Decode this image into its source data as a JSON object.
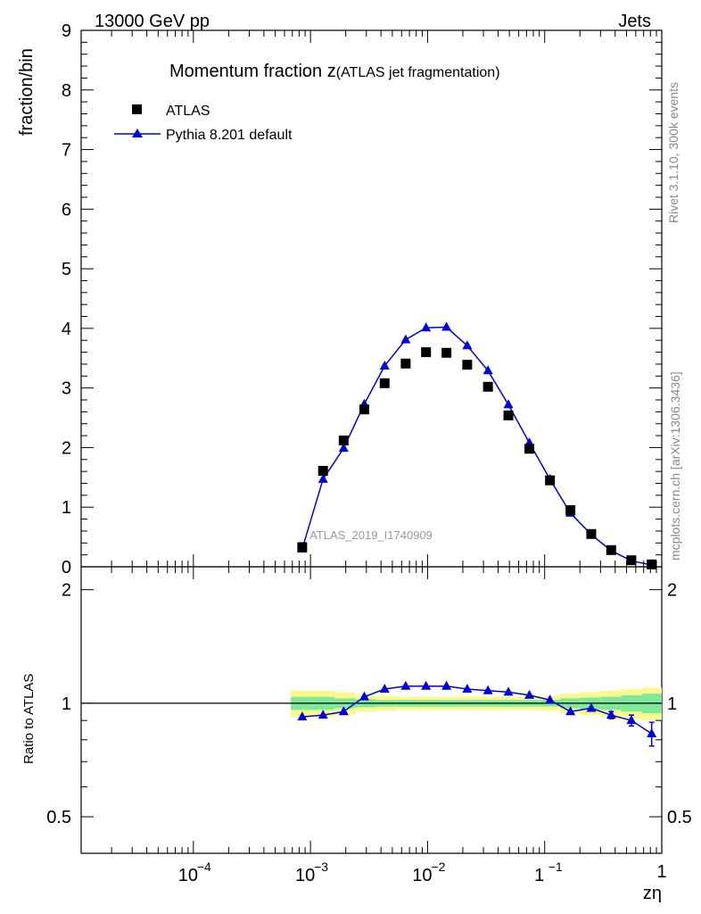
{
  "header": {
    "left": "13000 GeV pp",
    "right": "Jets"
  },
  "side_labels": {
    "rivet": "Rivet 3.1.10,  300k events",
    "mcplots": "mcplots.cern.ch [arXiv:1306.3436]"
  },
  "watermark": "ATLAS_2019_I1740909",
  "colors": {
    "data": "#000000",
    "mc": "#0000dd",
    "band_inner": "#7fe89b",
    "band_outer": "#fafa8c"
  },
  "chart_data": [
    {
      "type": "scatter",
      "title_main": "Momentum fraction z",
      "title_sub": "(ATLAS jet fragmentation)",
      "ylabel": "fraction/bin",
      "xlabel": "zη",
      "xscale": "log",
      "xlim": [
        1.1e-05,
        1.0
      ],
      "ylim": [
        0,
        9
      ],
      "yticks": [
        "0",
        "1",
        "2",
        "3",
        "4",
        "5",
        "6",
        "7",
        "8",
        "9"
      ],
      "xtick_labels": [
        "10",
        "10",
        "10",
        "1"
      ],
      "xtick_exponents": [
        "−4",
        "−3",
        "−2",
        "−1",
        ""
      ],
      "legend": [
        "ATLAS",
        "Pythia 8.201 default"
      ],
      "legend_position": "top-left",
      "series": [
        {
          "name": "ATLAS",
          "marker": "square",
          "x": [
            0.00085,
            0.00128,
            0.00192,
            0.00288,
            0.0043,
            0.0065,
            0.0097,
            0.0145,
            0.0218,
            0.0328,
            0.049,
            0.074,
            0.111,
            0.166,
            0.25,
            0.37,
            0.55,
            0.82
          ],
          "y": [
            0.33,
            1.61,
            2.12,
            2.64,
            3.08,
            3.41,
            3.6,
            3.59,
            3.39,
            3.02,
            2.54,
            1.98,
            1.45,
            0.95,
            0.55,
            0.28,
            0.11,
            0.04
          ]
        },
        {
          "name": "Pythia 8.201 default",
          "marker": "triangle",
          "x": [
            0.00085,
            0.00128,
            0.00192,
            0.00288,
            0.0043,
            0.0065,
            0.0097,
            0.0145,
            0.0218,
            0.0328,
            0.049,
            0.074,
            0.111,
            0.166,
            0.25,
            0.37,
            0.55,
            0.82
          ],
          "y": [
            0.3,
            1.47,
            1.99,
            2.73,
            3.37,
            3.81,
            4.01,
            4.02,
            3.71,
            3.29,
            2.72,
            2.08,
            1.47,
            0.9,
            0.54,
            0.27,
            0.1,
            0.03
          ]
        }
      ]
    },
    {
      "type": "line",
      "ylabel": "Ratio to ATLAS",
      "xlabel": "zη",
      "xscale": "log",
      "yscale": "log",
      "xlim": [
        1.1e-05,
        1.0
      ],
      "ylim": [
        0.4,
        2.3
      ],
      "yticks": [
        "0.5",
        "1",
        "2"
      ],
      "series": [
        {
          "name": "Pythia 8.201 default",
          "x": [
            0.00085,
            0.00128,
            0.00192,
            0.00288,
            0.0043,
            0.0065,
            0.0097,
            0.0145,
            0.0218,
            0.0328,
            0.049,
            0.074,
            0.111,
            0.166,
            0.25,
            0.37,
            0.55,
            0.82
          ],
          "y": [
            0.92,
            0.93,
            0.95,
            1.04,
            1.09,
            1.11,
            1.11,
            1.11,
            1.09,
            1.08,
            1.07,
            1.05,
            1.02,
            0.95,
            0.97,
            0.93,
            0.9,
            0.83
          ],
          "err": [
            0,
            0,
            0,
            0,
            0,
            0,
            0,
            0,
            0,
            0,
            0,
            0,
            0,
            0,
            0,
            0.02,
            0.03,
            0.06
          ]
        }
      ],
      "band_edges": [
        0.00068,
        0.00105,
        0.0016,
        0.0024,
        0.0036,
        0.0054,
        0.0081,
        0.0121,
        0.018,
        0.027,
        0.04,
        0.06,
        0.09,
        0.135,
        0.2,
        0.3,
        0.45,
        0.68,
        1.0
      ],
      "band_inner": [
        0.04,
        0.04,
        0.03,
        0.025,
        0.02,
        0.02,
        0.02,
        0.02,
        0.02,
        0.02,
        0.02,
        0.02,
        0.02,
        0.03,
        0.035,
        0.04,
        0.05,
        0.06
      ],
      "band_outer": [
        0.08,
        0.08,
        0.07,
        0.05,
        0.045,
        0.04,
        0.04,
        0.04,
        0.04,
        0.04,
        0.04,
        0.04,
        0.045,
        0.06,
        0.07,
        0.08,
        0.09,
        0.1
      ]
    }
  ]
}
